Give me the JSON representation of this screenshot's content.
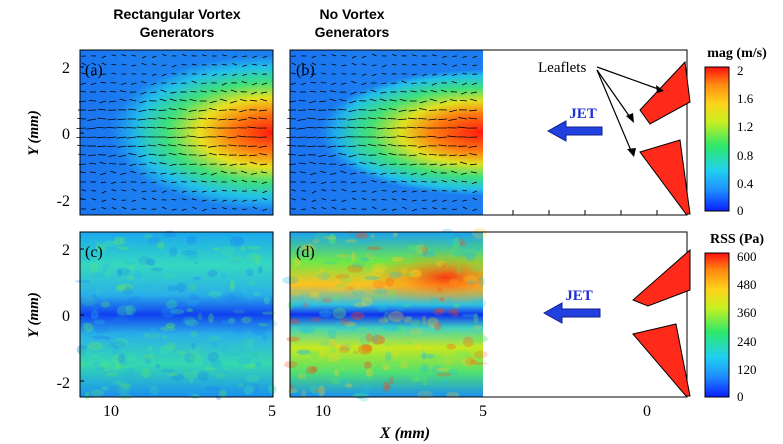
{
  "column_titles": {
    "left_line1": "Rectangular Vortex",
    "left_line2": "Generators",
    "right_line1": "No Vortex",
    "right_line2": "Generators"
  },
  "panels": {
    "a": "(a)",
    "b": "(b)",
    "c": "(c)",
    "d": "(d)"
  },
  "y_axis": {
    "label_top": "Y (mm)",
    "label_bottom": "Y (mm)",
    "ticks": [
      "2",
      "0",
      "-2"
    ]
  },
  "x_axis": {
    "label": "X (mm)",
    "ticks_left": [
      "10",
      "5"
    ],
    "ticks_right": [
      "10",
      "5",
      "0"
    ]
  },
  "annotations": {
    "leaflets": "Leaflets",
    "jet_top": "JET",
    "jet_bottom": "JET"
  },
  "colorbar_top": {
    "title": "mag (m/s)",
    "ticks": [
      "2",
      "1.6",
      "1.2",
      "0.8",
      "0.4",
      "0"
    ]
  },
  "colorbar_bottom": {
    "title": "RSS (Pa)",
    "ticks": [
      "600",
      "480",
      "360",
      "240",
      "120",
      "0"
    ]
  },
  "colors": {
    "leaflet": "#ff2a1a",
    "jet_text": "#1f2fd6",
    "jet_arrow": "#2040e0",
    "colormap": [
      "#0a1eff",
      "#1e8cff",
      "#20d0f0",
      "#2de86a",
      "#c8f020",
      "#ffd21a",
      "#ff8a10",
      "#ff1010"
    ]
  }
}
